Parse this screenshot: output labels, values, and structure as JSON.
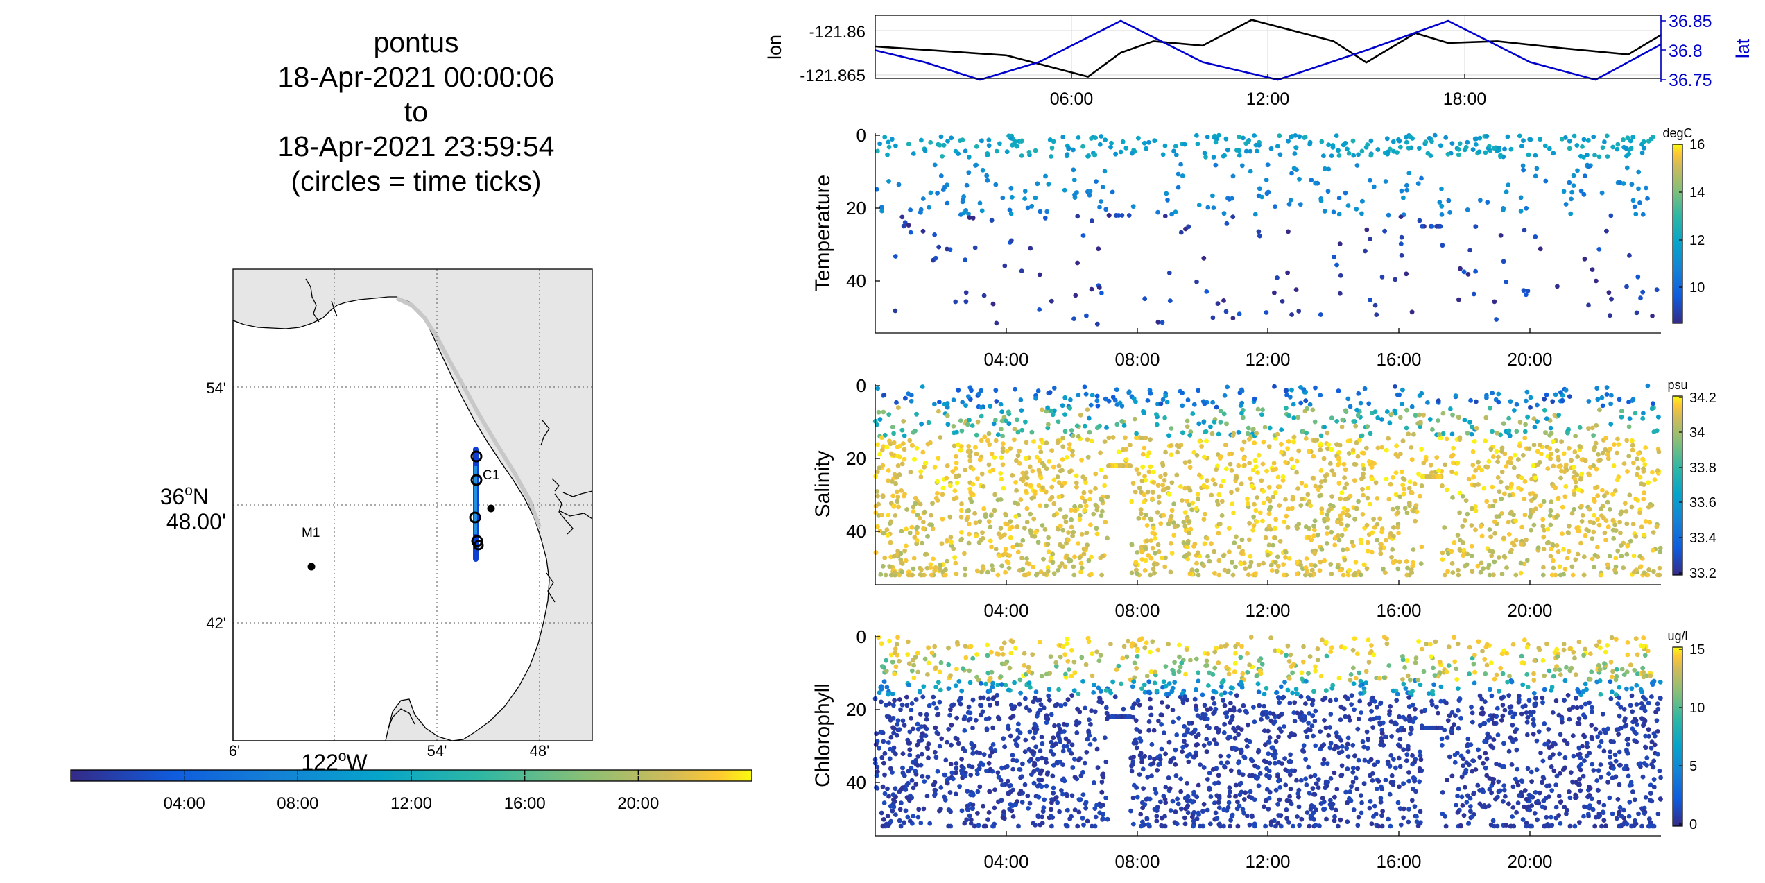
{
  "title_lines": [
    "pontus",
    "18-Apr-2021 00:00:06",
    "to",
    "18-Apr-2021 23:59:54",
    "(circles = time ticks)"
  ],
  "chart_data": [
    {
      "type": "map",
      "x_ticks": [
        "6'",
        "54'",
        "48'"
      ],
      "x_label_deg": "122",
      "x_label_hemi": "W",
      "y_ticks": [
        "54'",
        "42'"
      ],
      "y_center_deg": "36",
      "y_center_hemi": "N",
      "y_center_min": "48.00'",
      "stations": [
        {
          "name": "M1"
        },
        {
          "name": "C1"
        }
      ],
      "land_color": "#e6e6e6",
      "colorbar": {
        "type": "time",
        "ticks": [
          "04:00",
          "08:00",
          "12:00",
          "16:00",
          "20:00"
        ]
      }
    },
    {
      "type": "line",
      "ylabel_left": "lon",
      "ylabel_right": "lat",
      "y_ticks_left": [
        "-121.86",
        "-121.865"
      ],
      "y_ticks_right": [
        "36.85",
        "36.8",
        "36.75"
      ],
      "x_ticks": [
        "06:00",
        "12:00",
        "18:00"
      ],
      "series": [
        {
          "name": "lon",
          "color": "#000000",
          "x_hours": [
            0,
            4,
            6.5,
            7.5,
            8.5,
            10,
            11.5,
            14,
            15,
            16,
            16.5,
            17.5,
            19,
            21,
            23,
            24
          ],
          "values": [
            -121.8618,
            -121.8628,
            -121.8652,
            -121.8625,
            -121.8612,
            -121.8617,
            -121.8588,
            -121.8612,
            -121.8636,
            -121.8614,
            -121.8603,
            -121.8614,
            -121.8612,
            -121.862,
            -121.8627,
            -121.8605
          ]
        },
        {
          "name": "lat",
          "color": "#0000cc",
          "x_hours": [
            0,
            1.5,
            3.2,
            5,
            7.5,
            10,
            12.3,
            15,
            17.5,
            20,
            22,
            24
          ],
          "values": [
            36.8,
            36.78,
            36.75,
            36.78,
            36.85,
            36.78,
            36.75,
            36.8,
            36.85,
            36.78,
            36.75,
            36.81
          ]
        }
      ]
    },
    {
      "type": "scatter",
      "ylabel": "Temperature",
      "unit": "degC",
      "y_ticks": [
        "0",
        "20",
        "40"
      ],
      "ylim": [
        0,
        55
      ],
      "x_ticks": [
        "04:00",
        "08:00",
        "12:00",
        "16:00",
        "20:00"
      ],
      "clim": [
        8.5,
        16
      ],
      "cbar_ticks": [
        "16",
        "14",
        "12",
        "10"
      ]
    },
    {
      "type": "scatter",
      "ylabel": "Salinity",
      "unit": "psu",
      "y_ticks": [
        "0",
        "20",
        "40"
      ],
      "ylim": [
        0,
        55
      ],
      "x_ticks": [
        "04:00",
        "08:00",
        "12:00",
        "16:00",
        "20:00"
      ],
      "clim": [
        33.2,
        34.2
      ],
      "cbar_ticks": [
        "34.2",
        "34",
        "33.8",
        "33.6",
        "33.4",
        "33.2"
      ]
    },
    {
      "type": "scatter",
      "ylabel": "Chlorophyll",
      "unit": "ug/l",
      "y_ticks": [
        "0",
        "20",
        "40"
      ],
      "ylim": [
        0,
        55
      ],
      "x_ticks": [
        "04:00",
        "08:00",
        "12:00",
        "16:00",
        "20:00"
      ],
      "clim": [
        0,
        15
      ],
      "cbar_ticks": [
        "15",
        "10",
        "5",
        "0"
      ]
    }
  ]
}
